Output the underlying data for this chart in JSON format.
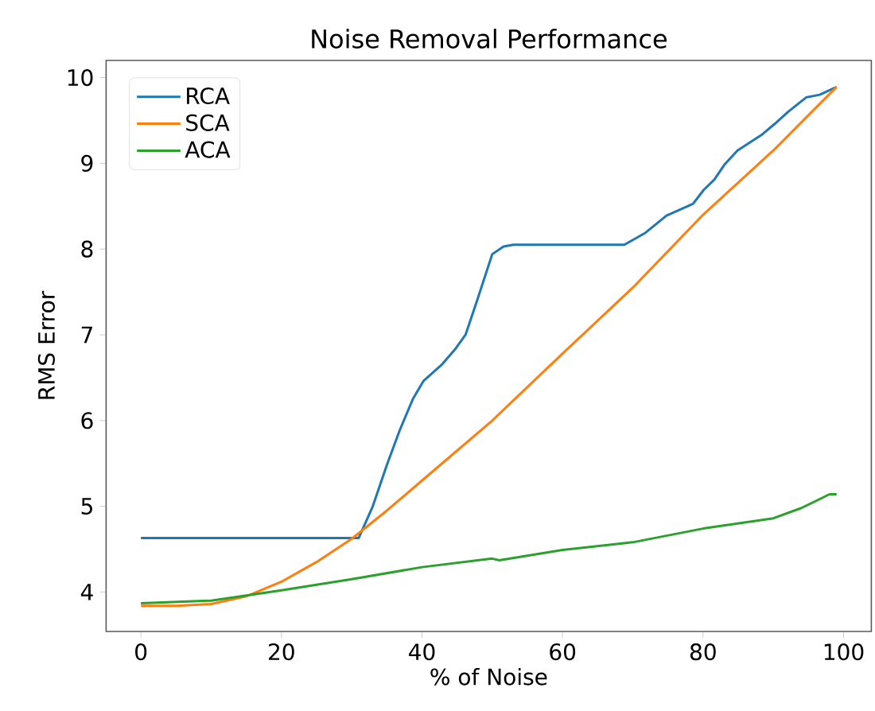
{
  "chart_data": {
    "type": "line",
    "title": "Noise Removal Performance",
    "xlabel": "% of Noise",
    "ylabel": "RMS Error",
    "xlim": [
      -4.95,
      103.95
    ],
    "ylim": [
      3.54,
      10.2
    ],
    "xticks": [
      0,
      20,
      40,
      60,
      80,
      100
    ],
    "yticks": [
      4,
      5,
      6,
      7,
      8,
      9,
      10
    ],
    "legend": "top left",
    "grid": false,
    "series": [
      {
        "name": "RCA",
        "color": "#1f77b4",
        "x": [
          0,
          31,
          33,
          35,
          36.8,
          38.7,
          40.2,
          42.8,
          44.7,
          46.2,
          47.8,
          50,
          51.6,
          53,
          60,
          68.8,
          71.8,
          74.8,
          78.6,
          80.1,
          81.6,
          83.1,
          84.9,
          88.3,
          90.2,
          92.1,
          94.7,
          96.6,
          99
        ],
        "values": [
          4.63,
          4.63,
          5.0,
          5.48,
          5.88,
          6.25,
          6.46,
          6.65,
          6.83,
          7.0,
          7.39,
          7.94,
          8.03,
          8.05,
          8.05,
          8.05,
          8.19,
          8.39,
          8.53,
          8.69,
          8.81,
          8.99,
          9.15,
          9.33,
          9.46,
          9.6,
          9.77,
          9.8,
          9.89
        ]
      },
      {
        "name": "SCA",
        "color": "#ff7f0e",
        "x": [
          0,
          5,
          10,
          15,
          20,
          25,
          30,
          35,
          40,
          50,
          60,
          70,
          80,
          90,
          99
        ],
        "values": [
          3.84,
          3.84,
          3.86,
          3.95,
          4.12,
          4.35,
          4.62,
          4.95,
          5.3,
          6.0,
          6.78,
          7.55,
          8.4,
          9.15,
          9.89
        ]
      },
      {
        "name": "ACA",
        "color": "#2ca02c",
        "x": [
          0,
          10,
          20,
          30,
          40,
          50,
          51,
          60,
          70,
          80,
          90,
          94,
          98,
          99
        ],
        "values": [
          3.87,
          3.9,
          4.02,
          4.15,
          4.29,
          4.39,
          4.37,
          4.49,
          4.58,
          4.74,
          4.86,
          4.98,
          5.14,
          5.14
        ]
      }
    ]
  }
}
